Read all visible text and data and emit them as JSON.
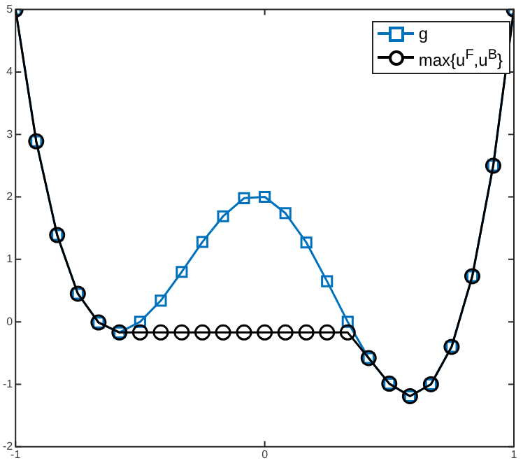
{
  "chart_data": {
    "type": "line",
    "x": [
      -1,
      -0.917,
      -0.833,
      -0.75,
      -0.667,
      -0.583,
      -0.5,
      -0.417,
      -0.333,
      -0.25,
      -0.167,
      -0.083,
      0,
      0.083,
      0.167,
      0.25,
      0.333,
      0.417,
      0.5,
      0.583,
      0.667,
      0.75,
      0.833,
      0.917,
      1
    ],
    "series": [
      {
        "name": "g",
        "color": "#0072bd",
        "marker": "square",
        "values": [
          5,
          2.89,
          1.39,
          0.45,
          -0.01,
          -0.17,
          0,
          0.34,
          0.8,
          1.28,
          1.69,
          1.98,
          2,
          1.74,
          1.27,
          0.65,
          0,
          -0.58,
          -0.99,
          -1.19,
          -1,
          -0.4,
          0.73,
          2.5,
          5
        ]
      },
      {
        "name": "max{u$^{F}$,u$^{B}$}",
        "color": "#000000",
        "marker": "circle",
        "values": [
          5,
          2.89,
          1.39,
          0.45,
          -0.01,
          -0.17,
          -0.17,
          -0.17,
          -0.17,
          -0.17,
          -0.17,
          -0.17,
          -0.17,
          -0.17,
          -0.17,
          -0.17,
          -0.17,
          -0.58,
          -0.99,
          -1.19,
          -1,
          -0.4,
          0.73,
          2.5,
          5
        ]
      }
    ],
    "xlim": [
      -1,
      1
    ],
    "xticks": [
      -1,
      0,
      1
    ],
    "ylim": [
      -2,
      5
    ],
    "yticks": [
      -2,
      -1,
      0,
      1,
      2,
      3,
      4,
      5
    ],
    "grid": false,
    "legend": "top right",
    "line_style": "solid"
  }
}
